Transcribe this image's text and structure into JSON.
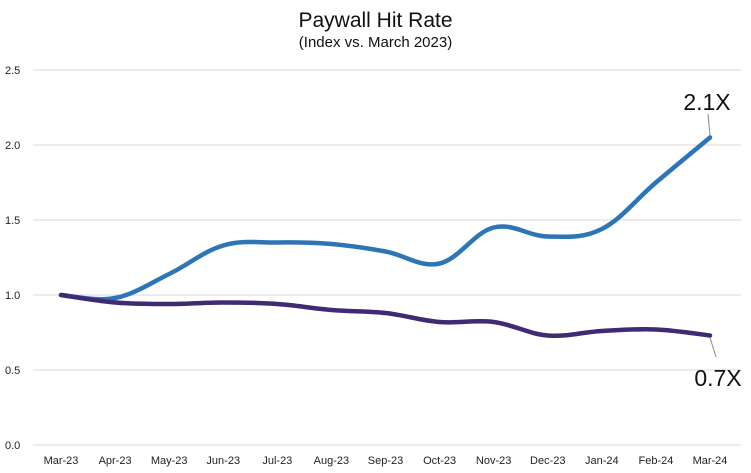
{
  "chart_data": {
    "type": "line",
    "title": "Paywall Hit Rate",
    "subtitle": "(Index vs. March 2023)",
    "categories": [
      "Mar-23",
      "Apr-23",
      "May-23",
      "Jun-23",
      "Jul-23",
      "Aug-23",
      "Sep-23",
      "Oct-23",
      "Nov-23",
      "Dec-23",
      "Jan-24",
      "Feb-24",
      "Mar-24"
    ],
    "series": [
      {
        "color": "#2e75b6",
        "values": [
          1.0,
          0.98,
          1.14,
          1.33,
          1.35,
          1.34,
          1.29,
          1.21,
          1.45,
          1.39,
          1.44,
          1.75,
          2.05
        ],
        "end_label": "2.1X"
      },
      {
        "color": "#3f2a73",
        "values": [
          1.0,
          0.95,
          0.94,
          0.95,
          0.94,
          0.9,
          0.88,
          0.82,
          0.82,
          0.73,
          0.76,
          0.77,
          0.73
        ],
        "end_label": "0.7X"
      }
    ],
    "yticks": [
      "0.0",
      "0.5",
      "1.0",
      "1.5",
      "2.0",
      "2.5"
    ],
    "ylim": [
      0,
      2.5
    ],
    "grid": true,
    "legend": "none"
  }
}
